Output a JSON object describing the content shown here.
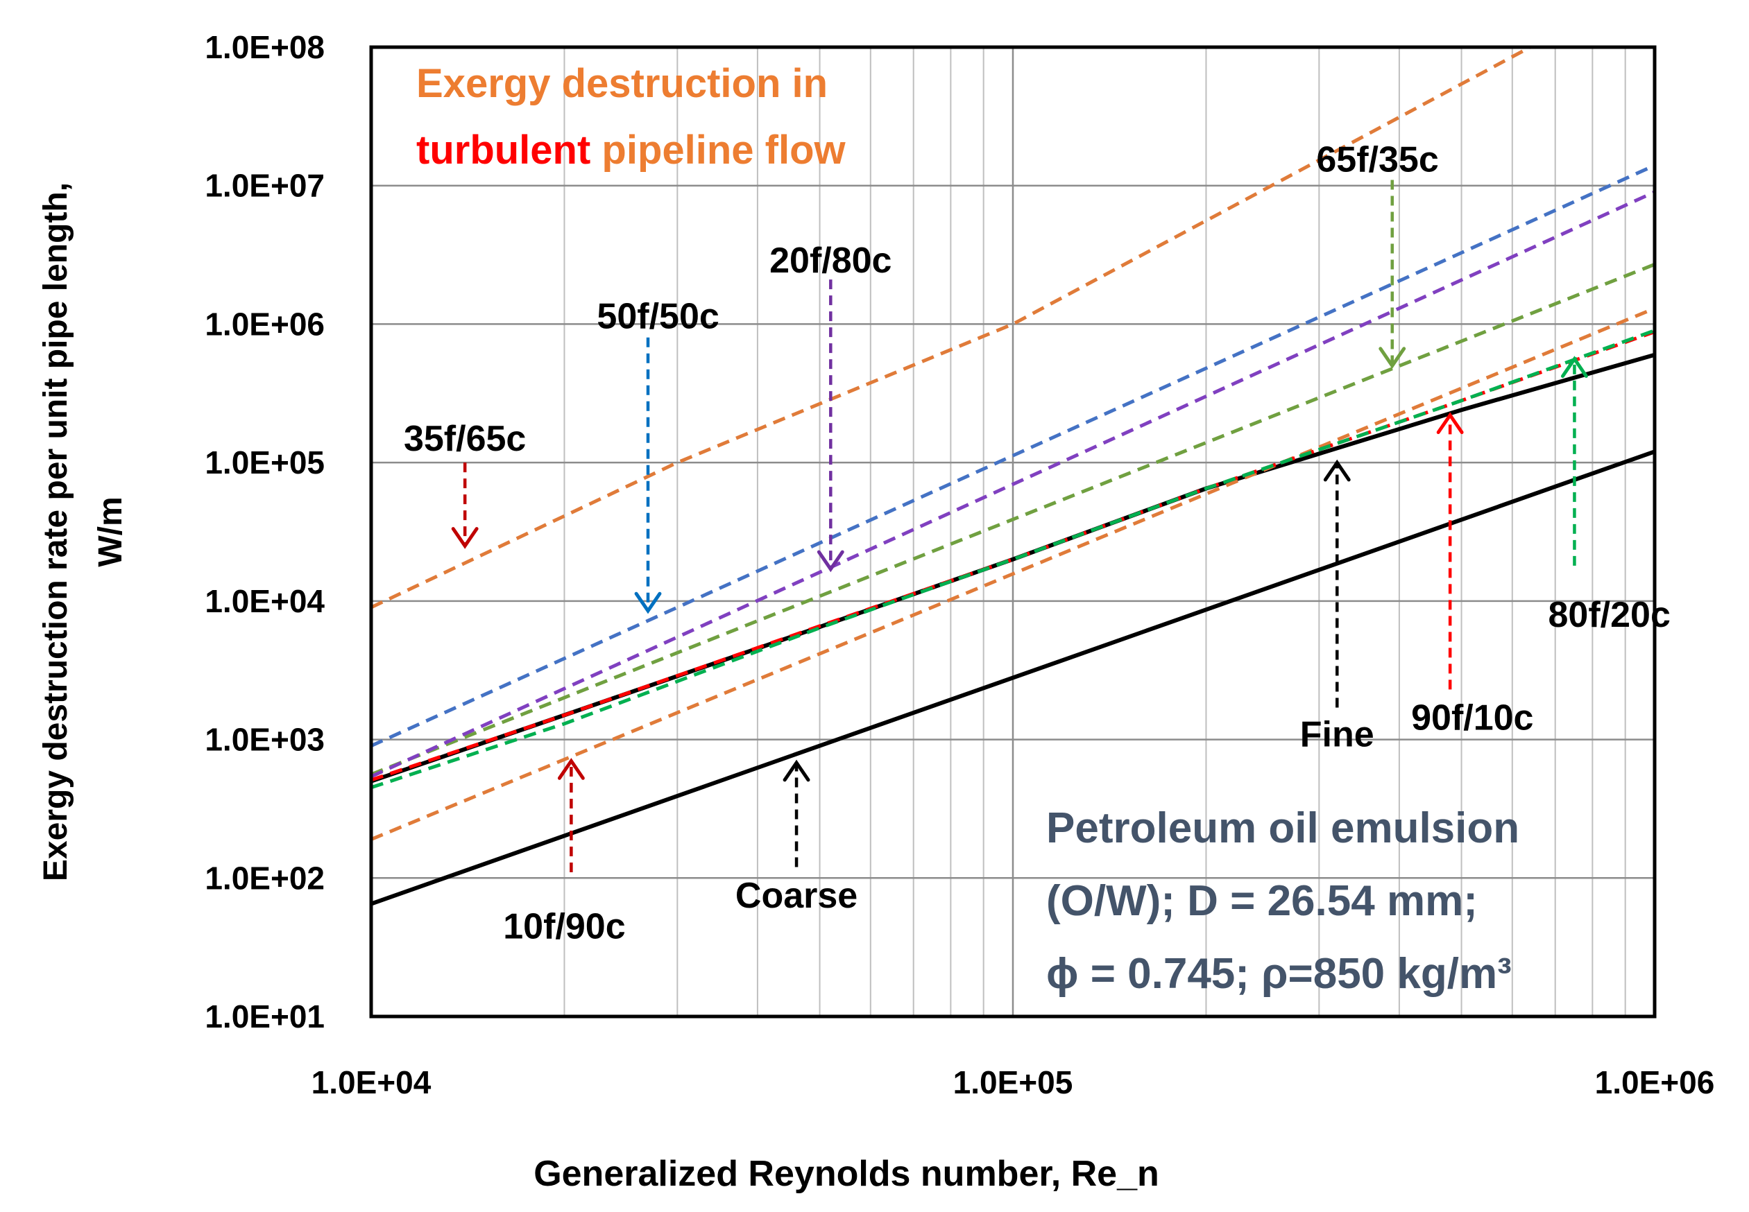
{
  "chart_data": {
    "type": "line",
    "xscale": "log",
    "yscale": "log",
    "xlim": [
      10000,
      1000000
    ],
    "ylim": [
      10,
      100000000
    ],
    "xticks": [
      "1.0E+04",
      "1.0E+05",
      "1.0E+06"
    ],
    "yticks": [
      "1.0E+01",
      "1.0E+02",
      "1.0E+03",
      "1.0E+04",
      "1.0E+05",
      "1.0E+06",
      "1.0E+07",
      "1.0E+08"
    ],
    "xlabel": "Generalized Reynolds number, Re_n",
    "ylabel_line1": "Exergy destruction rate per unit pipe length,",
    "ylabel_line2": "W/m",
    "title_line1": "Exergy destruction  in",
    "title_line2_highlight": "turbulent",
    "title_line2_rest": " pipeline flow",
    "info_line1": "Petroleum oil emulsion",
    "info_line2": "(O/W); D = 26.54 mm;",
    "info_line3": " ϕ = 0.745; ρ=850 kg/m³",
    "grid": true,
    "series": [
      {
        "name": "Coarse",
        "style": "solid",
        "color": "#000000",
        "x": [
          10000,
          1000000
        ],
        "y": [
          65,
          120000
        ]
      },
      {
        "name": "Fine",
        "style": "solid",
        "color": "#000000",
        "x": [
          10000,
          20000,
          50000,
          100000,
          200000,
          500000,
          1000000
        ],
        "y": [
          500,
          1500,
          6500,
          20000,
          65000,
          240000,
          600000
        ]
      },
      {
        "name": "10f/90c",
        "style": "dashed",
        "color": "#e07b39",
        "x": [
          10000,
          1000000
        ],
        "y": [
          190,
          1300000
        ]
      },
      {
        "name": "90f/10c",
        "style": "dashed",
        "color": "#ff0000",
        "x": [
          10000,
          20000,
          50000,
          100000,
          200000,
          500000,
          1000000
        ],
        "y": [
          510,
          1500,
          6600,
          20000,
          65000,
          280000,
          880000
        ]
      },
      {
        "name": "80f/20c",
        "style": "dashed",
        "color": "#00b050",
        "x": [
          10000,
          20000,
          50000,
          100000,
          200000,
          500000,
          1000000
        ],
        "y": [
          450,
          1300,
          6400,
          20000,
          65000,
          280000,
          900000
        ]
      },
      {
        "name": "65f/35c",
        "style": "dashed",
        "color": "#70a040",
        "x": [
          10000,
          1000000
        ],
        "y": [
          560,
          2700000
        ]
      },
      {
        "name": "20f/80c",
        "style": "dashed",
        "color": "#8040c0",
        "x": [
          10000,
          1000000
        ],
        "y": [
          540,
          9000000
        ]
      },
      {
        "name": "50f/50c",
        "style": "dashed",
        "color": "#4472c4",
        "x": [
          10000,
          1000000
        ],
        "y": [
          900,
          14000000
        ]
      },
      {
        "name": "35f/65c",
        "style": "dashed",
        "color": "#e07b39",
        "x": [
          10000,
          30000,
          100000,
          640000
        ],
        "y": [
          9000,
          100000,
          1000000,
          100000000
        ]
      }
    ],
    "annotations": [
      {
        "label": "35f/65c",
        "color": "#c00000",
        "tail": [
          14000,
          100000
        ],
        "head": [
          14000,
          25000
        ],
        "label_at": [
          14000,
          150000
        ]
      },
      {
        "label": "50f/50c",
        "color": "#0070c0",
        "tail": [
          27000,
          800000
        ],
        "head": [
          27000,
          8500
        ],
        "label_at": [
          28000,
          1150000
        ]
      },
      {
        "label": "20f/80c",
        "color": "#7030a0",
        "tail": [
          52000,
          2100000
        ],
        "head": [
          52000,
          17000
        ],
        "label_at": [
          52000,
          2900000
        ]
      },
      {
        "label": "65f/35c",
        "color": "#70a040",
        "tail": [
          390000,
          11000000
        ],
        "head": [
          390000,
          500000
        ],
        "label_at": [
          370000,
          15500000
        ]
      },
      {
        "label": "10f/90c",
        "color": "#c00000",
        "tail": [
          20500,
          110
        ],
        "head": [
          20500,
          700
        ],
        "label_at": [
          20000,
          45
        ]
      },
      {
        "label": "Coarse",
        "color": "#000000",
        "tail": [
          46000,
          120
        ],
        "head": [
          46000,
          680
        ],
        "label_at": [
          46000,
          75
        ]
      },
      {
        "label": "Fine",
        "color": "#000000",
        "tail": [
          320000,
          1700
        ],
        "head": [
          320000,
          100000
        ],
        "label_at": [
          320000,
          1100
        ]
      },
      {
        "label": "90f/10c",
        "color": "#ff0000",
        "tail": [
          480000,
          2300
        ],
        "head": [
          480000,
          220000
        ],
        "label_at": [
          520000,
          1450
        ]
      },
      {
        "label": "80f/20c",
        "color": "#00b050",
        "tail": [
          750000,
          18000
        ],
        "head": [
          750000,
          560000
        ],
        "label_at": [
          850000,
          8000
        ]
      }
    ]
  }
}
